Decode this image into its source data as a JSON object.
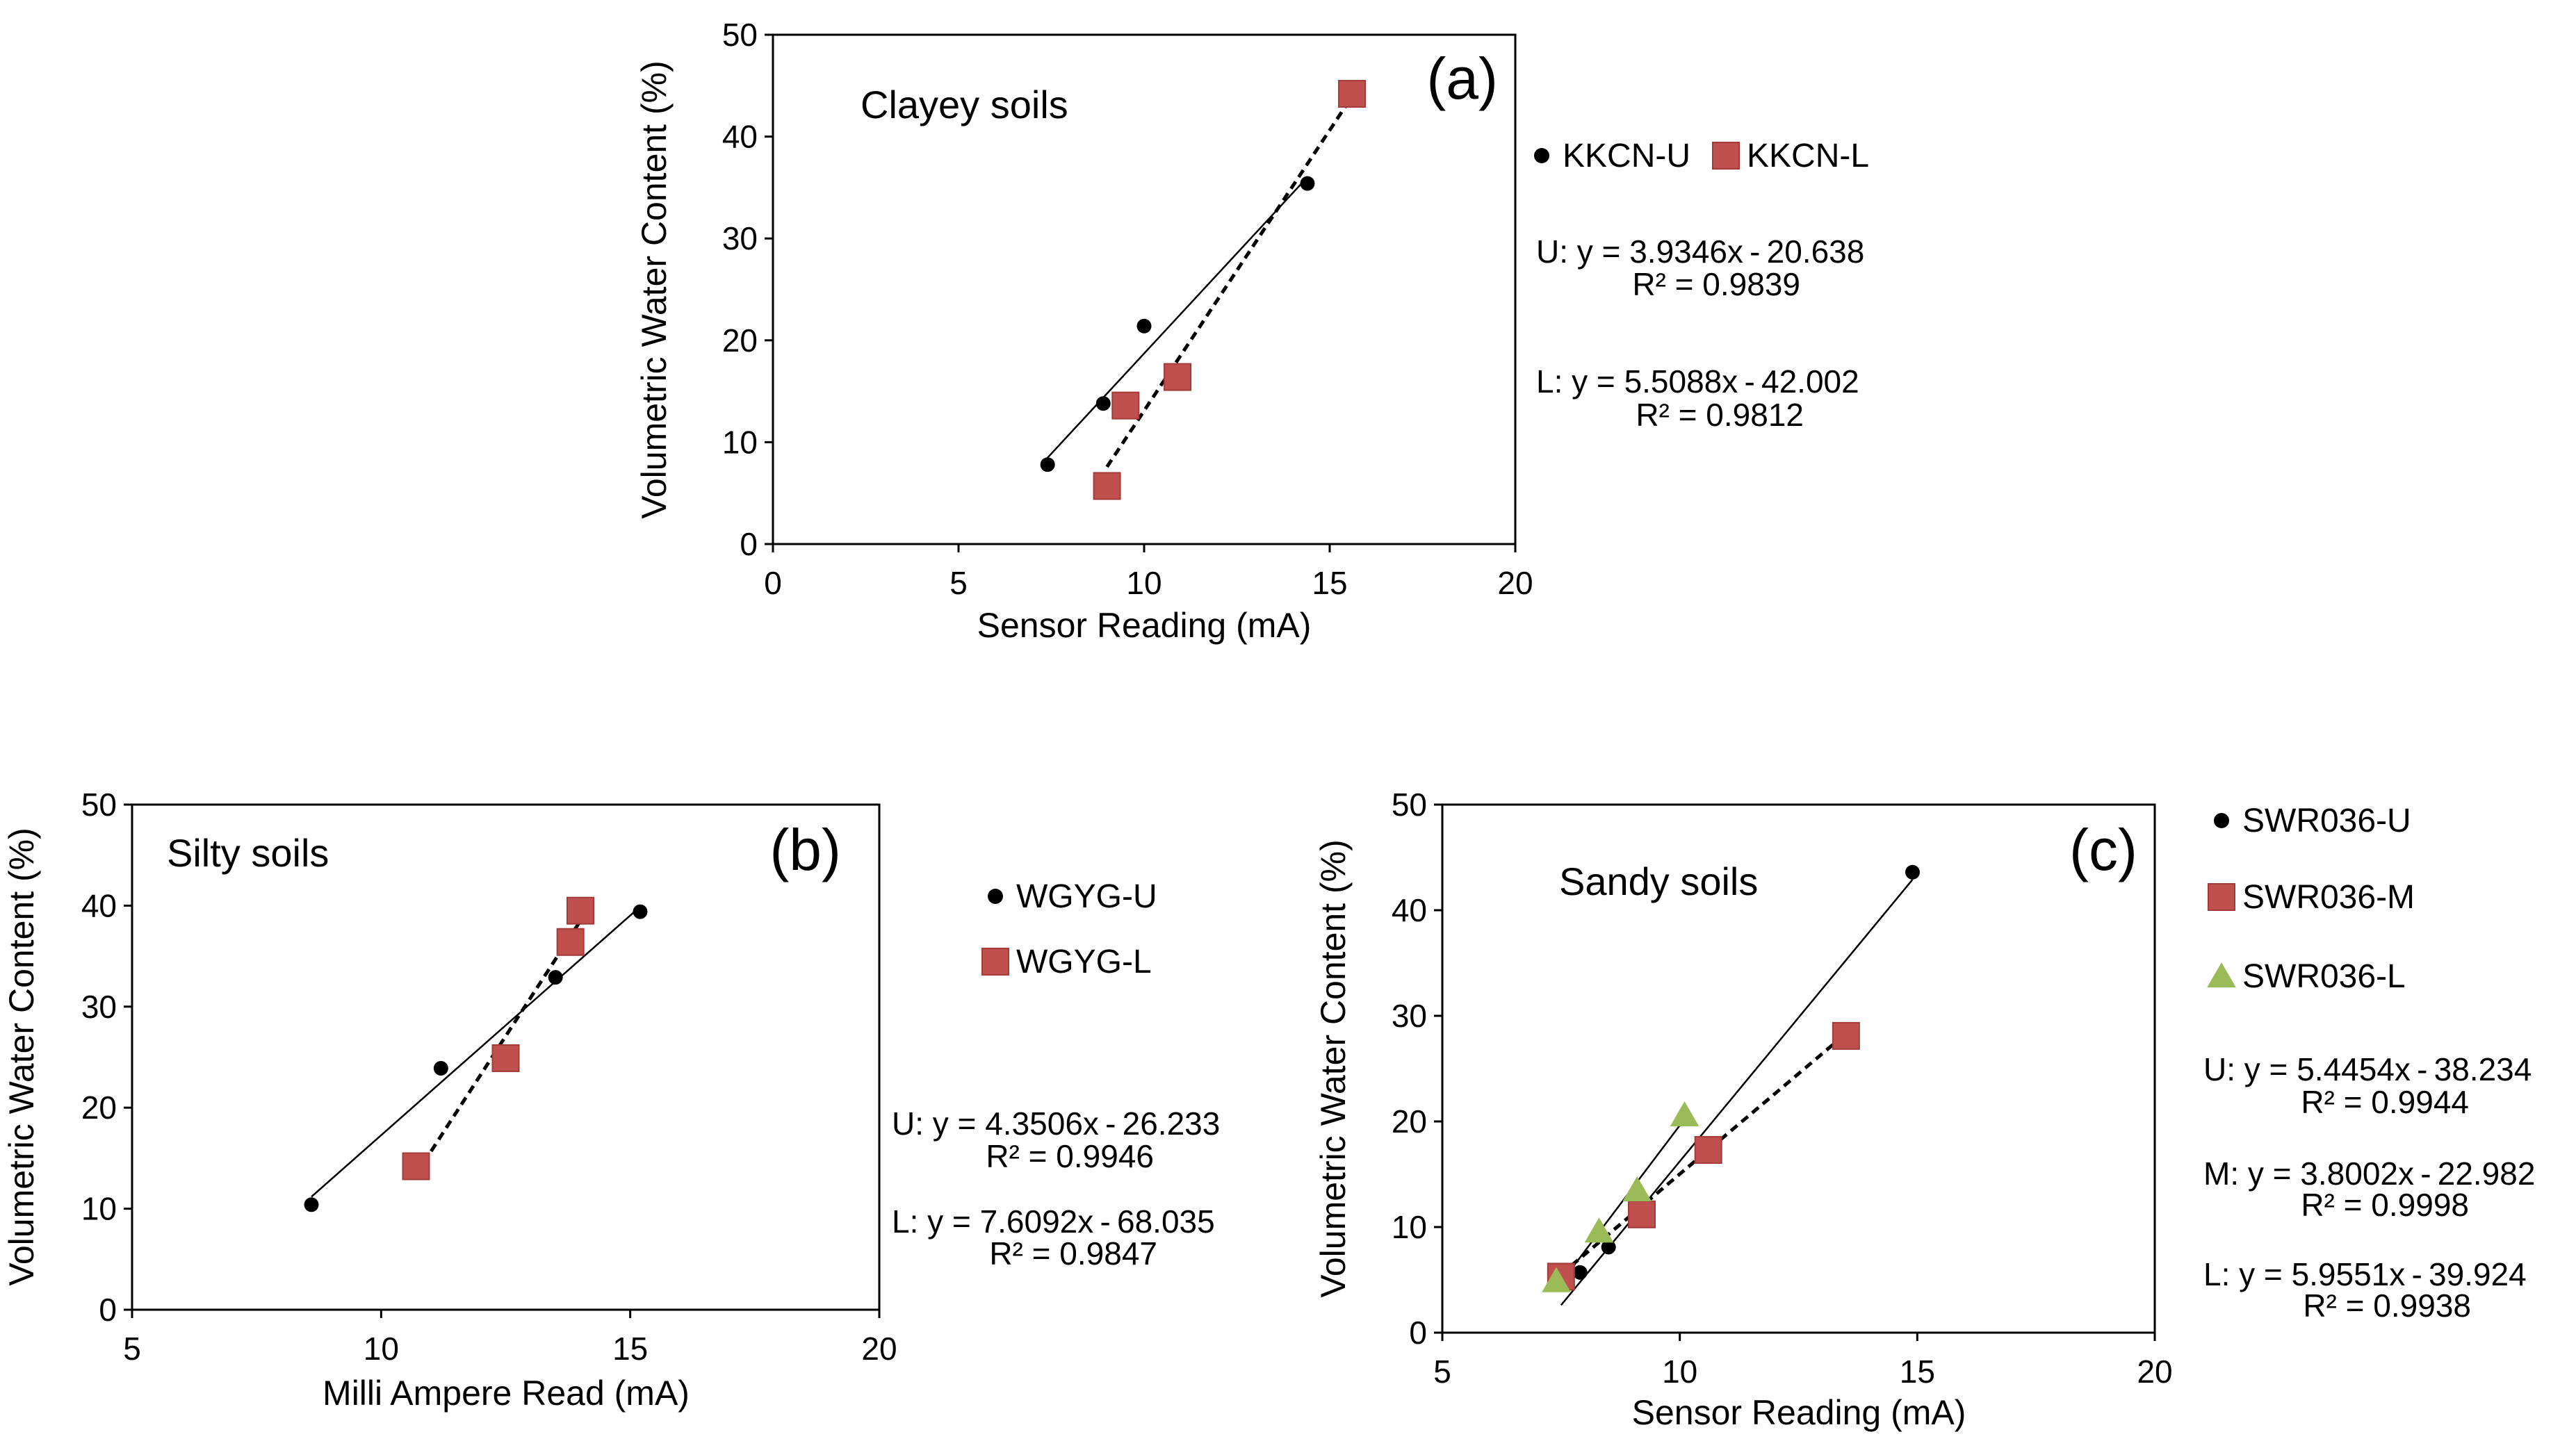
{
  "chart_data": [
    {
      "type": "scatter",
      "panel_label": "(a)",
      "soil_label": "Clayey soils",
      "xlabel": "Sensor Reading (mA)",
      "ylabel": "Volumetric Water Content (%)",
      "xlim": [
        0,
        20
      ],
      "ylim": [
        0,
        50
      ],
      "xticks": [
        0,
        5,
        10,
        15,
        20
      ],
      "yticks": [
        0,
        10,
        20,
        30,
        40,
        50
      ],
      "series": [
        {
          "name": "KKCN-U",
          "marker": "circle",
          "color": "#000000",
          "x": [
            7.4,
            8.9,
            10.0,
            14.4
          ],
          "y": [
            7.8,
            13.8,
            21.4,
            35.4
          ],
          "fit": {
            "slope": 3.9346,
            "intercept": -20.638,
            "x_range": [
              7.4,
              14.4
            ],
            "style": "solid"
          },
          "equation": "U: y = 3.9346x - 20.638",
          "r2": "R² = 0.9839"
        },
        {
          "name": "KKCN-L",
          "marker": "square",
          "color": "#c0504d",
          "x": [
            9.0,
            9.5,
            10.9,
            15.6
          ],
          "y": [
            5.7,
            13.6,
            16.4,
            44.2
          ],
          "fit": {
            "slope": 5.5088,
            "intercept": -42.002,
            "x_range": [
              9.0,
              15.6
            ],
            "style": "dashed"
          },
          "equation": "L: y = 5.5088x - 42.002",
          "r2": "R² = 0.9812"
        }
      ]
    },
    {
      "type": "scatter",
      "panel_label": "(b)",
      "soil_label": "Silty soils",
      "xlabel": "Milli Ampere Read (mA)",
      "ylabel": "Volumetric Water Content (%)",
      "xlim": [
        5,
        20
      ],
      "ylim": [
        0,
        50
      ],
      "xticks": [
        5,
        10,
        15,
        20
      ],
      "yticks": [
        0,
        10,
        20,
        30,
        40,
        50
      ],
      "series": [
        {
          "name": "WGYG-U",
          "marker": "circle",
          "color": "#000000",
          "x": [
            8.6,
            11.2,
            13.5,
            15.2
          ],
          "y": [
            10.4,
            23.9,
            32.9,
            39.4
          ],
          "fit": {
            "slope": 4.3506,
            "intercept": -26.233,
            "x_range": [
              8.6,
              15.2
            ],
            "style": "solid"
          },
          "equation": "U: y = 4.3506x - 26.233",
          "r2": "R² = 0.9946"
        },
        {
          "name": "WGYG-L",
          "marker": "square",
          "color": "#c0504d",
          "x": [
            10.7,
            12.5,
            13.8,
            14.0
          ],
          "y": [
            14.2,
            24.9,
            36.4,
            39.5
          ],
          "fit": {
            "slope": 7.6092,
            "intercept": -68.035,
            "x_range": [
              10.7,
              14.0
            ],
            "style": "dashed"
          },
          "equation": "L: y = 7.6092x - 68.035",
          "r2": "R² = 0.9847"
        }
      ]
    },
    {
      "type": "scatter",
      "panel_label": "(c)",
      "soil_label": "Sandy soils",
      "xlabel": "Sensor Reading (mA)",
      "ylabel": "Volumetric Water Content (%)",
      "xlim": [
        5,
        20
      ],
      "ylim": [
        0,
        50
      ],
      "xticks": [
        5,
        10,
        15,
        20
      ],
      "yticks": [
        0,
        10,
        20,
        30,
        40,
        50
      ],
      "series": [
        {
          "name": "SWR036-U",
          "marker": "circle",
          "color": "#000000",
          "x": [
            7.9,
            8.5,
            14.9
          ],
          "y": [
            5.7,
            8.1,
            43.6
          ],
          "fit": {
            "slope": 5.4454,
            "intercept": -38.234,
            "x_range": [
              7.5,
              14.9
            ],
            "style": "solid"
          },
          "equation": "U: y = 5.4454x - 38.234",
          "r2": "R² = 0.9944"
        },
        {
          "name": "SWR036-M",
          "marker": "square",
          "color": "#c0504d",
          "x": [
            7.5,
            9.2,
            10.6,
            13.5
          ],
          "y": [
            5.3,
            11.2,
            17.3,
            28.1
          ],
          "fit": {
            "slope": 3.8002,
            "intercept": -22.982,
            "x_range": [
              7.5,
              13.5
            ],
            "style": "dashed"
          },
          "equation": "M: y = 3.8002x - 22.982",
          "r2": "R² = 0.9998"
        },
        {
          "name": "SWR036-L",
          "marker": "triangle",
          "color": "#9bbb59",
          "x": [
            7.4,
            8.3,
            9.1,
            10.1
          ],
          "y": [
            4.9,
            9.6,
            13.5,
            20.6
          ],
          "fit": {
            "slope": 5.9551,
            "intercept": -39.924,
            "x_range": [
              7.4,
              10.1
            ],
            "style": "solid"
          },
          "equation": "L: y = 5.9551x - 39.924",
          "r2": "R² = 0.9938"
        }
      ]
    }
  ]
}
